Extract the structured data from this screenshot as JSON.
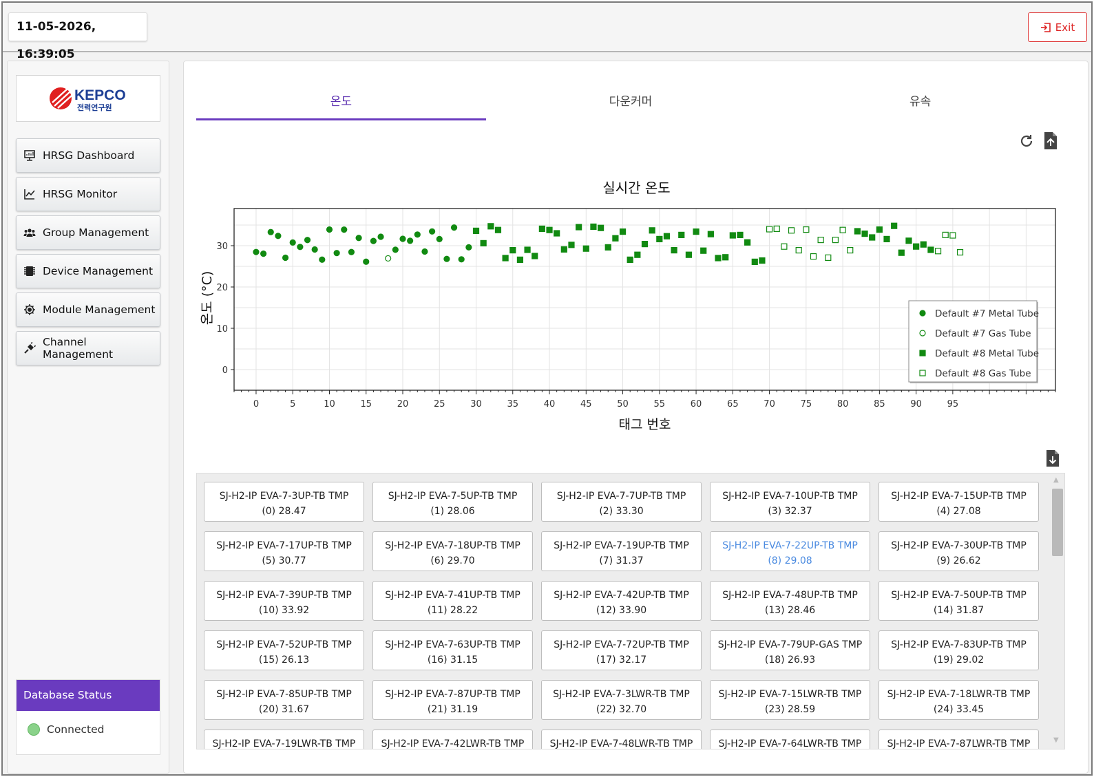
{
  "header": {
    "datetime": "11-05-2026, 16:39:05",
    "exit_label": "Exit"
  },
  "sidebar": {
    "logo_text_en": "KEPCO",
    "logo_text_kr": "전력연구원",
    "items": [
      {
        "label": "HRSG Dashboard",
        "icon": "monitor-icon"
      },
      {
        "label": "HRSG Monitor",
        "icon": "line-chart-icon"
      },
      {
        "label": "Group Management",
        "icon": "users-icon"
      },
      {
        "label": "Device Management",
        "icon": "memory-chip-icon"
      },
      {
        "label": "Module Management",
        "icon": "cpu-icon"
      },
      {
        "label": "Channel Management",
        "icon": "plug-icon"
      }
    ],
    "db_status": {
      "title": "Database Status",
      "value": "Connected",
      "indicator_color": "#8ad28a"
    }
  },
  "tabs": [
    {
      "label": "온도",
      "active": true
    },
    {
      "label": "다운커머",
      "active": false
    },
    {
      "label": "유속",
      "active": false
    }
  ],
  "colors": {
    "accent": "#6a3bbf",
    "series": "#118a11",
    "highlight_text": "#4a8ae0",
    "exit": "#d33333"
  },
  "chart_data": {
    "type": "scatter",
    "title": "실시간 온도",
    "xlabel": "태그 번호",
    "ylabel": "온도 (°C)",
    "xlim": [
      -3,
      109
    ],
    "ylim": [
      -5,
      39
    ],
    "xticks": [
      0,
      5,
      10,
      15,
      20,
      25,
      30,
      35,
      40,
      45,
      50,
      55,
      60,
      65,
      70,
      75,
      80,
      85,
      90,
      95
    ],
    "yticks": [
      0,
      10,
      20,
      30
    ],
    "grid": true,
    "legend_position": "lower-right",
    "series": [
      {
        "name": "Default #7 Metal Tube",
        "marker": "circle",
        "filled": true,
        "x": [
          0,
          1,
          2,
          3,
          4,
          5,
          6,
          7,
          8,
          9,
          10,
          11,
          12,
          13,
          14,
          15,
          16,
          17,
          19,
          20,
          21,
          22,
          23,
          24,
          25,
          26,
          27,
          28,
          29
        ],
        "y": [
          28.47,
          28.06,
          33.3,
          32.37,
          27.08,
          30.77,
          29.7,
          31.37,
          29.08,
          26.62,
          33.92,
          28.22,
          33.9,
          28.46,
          31.87,
          26.13,
          31.15,
          32.17,
          29.02,
          31.67,
          31.19,
          32.7,
          28.59,
          33.45,
          31.6,
          26.8,
          34.4,
          26.7,
          29.6
        ]
      },
      {
        "name": "Default #7 Gas Tube",
        "marker": "circle",
        "filled": false,
        "x": [
          18
        ],
        "y": [
          26.93
        ]
      },
      {
        "name": "Default #8 Metal Tube",
        "marker": "square",
        "filled": true,
        "x": [
          30,
          31,
          32,
          33,
          34,
          35,
          36,
          37,
          38,
          39,
          40,
          41,
          42,
          43,
          44,
          45,
          46,
          47,
          48,
          49,
          50,
          51,
          52,
          53,
          54,
          55,
          56,
          57,
          58,
          59,
          60,
          61,
          62,
          63,
          64,
          65,
          66,
          67,
          68,
          69,
          82,
          83,
          84,
          85,
          86,
          87,
          88,
          89,
          90,
          91,
          92
        ],
        "y": [
          33.6,
          30.6,
          34.7,
          33.8,
          27.0,
          28.9,
          26.6,
          29.0,
          27.5,
          34.1,
          33.8,
          33.0,
          29.1,
          30.2,
          34.5,
          29.3,
          34.6,
          34.3,
          29.6,
          31.8,
          33.4,
          26.6,
          27.8,
          30.4,
          33.7,
          31.6,
          32.3,
          28.9,
          32.6,
          27.8,
          33.4,
          28.8,
          32.8,
          27.0,
          27.2,
          32.5,
          32.6,
          30.8,
          26.1,
          26.4,
          33.5,
          32.9,
          32.0,
          33.9,
          31.6,
          34.8,
          28.3,
          31.2,
          29.8,
          30.3,
          29.0
        ]
      },
      {
        "name": "Default #8 Gas Tube",
        "marker": "square",
        "filled": false,
        "x": [
          70,
          71,
          72,
          73,
          74,
          75,
          76,
          77,
          78,
          79,
          80,
          81,
          93,
          94,
          95,
          96
        ],
        "y": [
          34.0,
          34.1,
          29.8,
          33.7,
          28.9,
          33.9,
          27.4,
          31.4,
          27.1,
          31.4,
          33.8,
          28.9,
          28.7,
          32.6,
          32.5,
          28.4
        ]
      }
    ]
  },
  "tag_download_icon": "file-download-icon",
  "chart_icons": [
    "refresh-icon",
    "export-file-icon"
  ],
  "tags": [
    {
      "name": "SJ-H2-IP EVA-7-3UP-TB TMP",
      "value": "(0) 28.47"
    },
    {
      "name": "SJ-H2-IP EVA-7-5UP-TB TMP",
      "value": "(1) 28.06"
    },
    {
      "name": "SJ-H2-IP EVA-7-7UP-TB TMP",
      "value": "(2) 33.30"
    },
    {
      "name": "SJ-H2-IP EVA-7-10UP-TB TMP",
      "value": "(3) 32.37"
    },
    {
      "name": "SJ-H2-IP EVA-7-15UP-TB TMP",
      "value": "(4) 27.08"
    },
    {
      "name": "SJ-H2-IP EVA-7-17UP-TB TMP",
      "value": "(5) 30.77"
    },
    {
      "name": "SJ-H2-IP EVA-7-18UP-TB TMP",
      "value": "(6) 29.70"
    },
    {
      "name": "SJ-H2-IP EVA-7-19UP-TB TMP",
      "value": "(7) 31.37"
    },
    {
      "name": "SJ-H2-IP EVA-7-22UP-TB TMP",
      "value": "(8) 29.08",
      "highlight": true
    },
    {
      "name": "SJ-H2-IP EVA-7-30UP-TB TMP",
      "value": "(9) 26.62"
    },
    {
      "name": "SJ-H2-IP EVA-7-39UP-TB TMP",
      "value": "(10) 33.92"
    },
    {
      "name": "SJ-H2-IP EVA-7-41UP-TB TMP",
      "value": "(11) 28.22"
    },
    {
      "name": "SJ-H2-IP EVA-7-42UP-TB TMP",
      "value": "(12) 33.90"
    },
    {
      "name": "SJ-H2-IP EVA-7-48UP-TB TMP",
      "value": "(13) 28.46"
    },
    {
      "name": "SJ-H2-IP EVA-7-50UP-TB TMP",
      "value": "(14) 31.87"
    },
    {
      "name": "SJ-H2-IP EVA-7-52UP-TB TMP",
      "value": "(15) 26.13"
    },
    {
      "name": "SJ-H2-IP EVA-7-63UP-TB TMP",
      "value": "(16) 31.15"
    },
    {
      "name": "SJ-H2-IP EVA-7-72UP-TB TMP",
      "value": "(17) 32.17"
    },
    {
      "name": "SJ-H2-IP EVA-7-79UP-GAS TMP",
      "value": "(18) 26.93"
    },
    {
      "name": "SJ-H2-IP EVA-7-83UP-TB TMP",
      "value": "(19) 29.02"
    },
    {
      "name": "SJ-H2-IP EVA-7-85UP-TB TMP",
      "value": "(20) 31.67"
    },
    {
      "name": "SJ-H2-IP EVA-7-87UP-TB TMP",
      "value": "(21) 31.19"
    },
    {
      "name": "SJ-H2-IP EVA-7-3LWR-TB TMP",
      "value": "(22) 32.70"
    },
    {
      "name": "SJ-H2-IP EVA-7-15LWR-TB TMP",
      "value": "(23) 28.59"
    },
    {
      "name": "SJ-H2-IP EVA-7-18LWR-TB TMP",
      "value": "(24) 33.45"
    },
    {
      "name": "SJ-H2-IP EVA-7-19LWR-TB TMP",
      "value": ""
    },
    {
      "name": "SJ-H2-IP EVA-7-42LWR-TB TMP",
      "value": ""
    },
    {
      "name": "SJ-H2-IP EVA-7-48LWR-TB TMP",
      "value": ""
    },
    {
      "name": "SJ-H2-IP EVA-7-64LWR-TB TMP",
      "value": ""
    },
    {
      "name": "SJ-H2-IP EVA-7-87LWR-TB TMP",
      "value": ""
    }
  ]
}
